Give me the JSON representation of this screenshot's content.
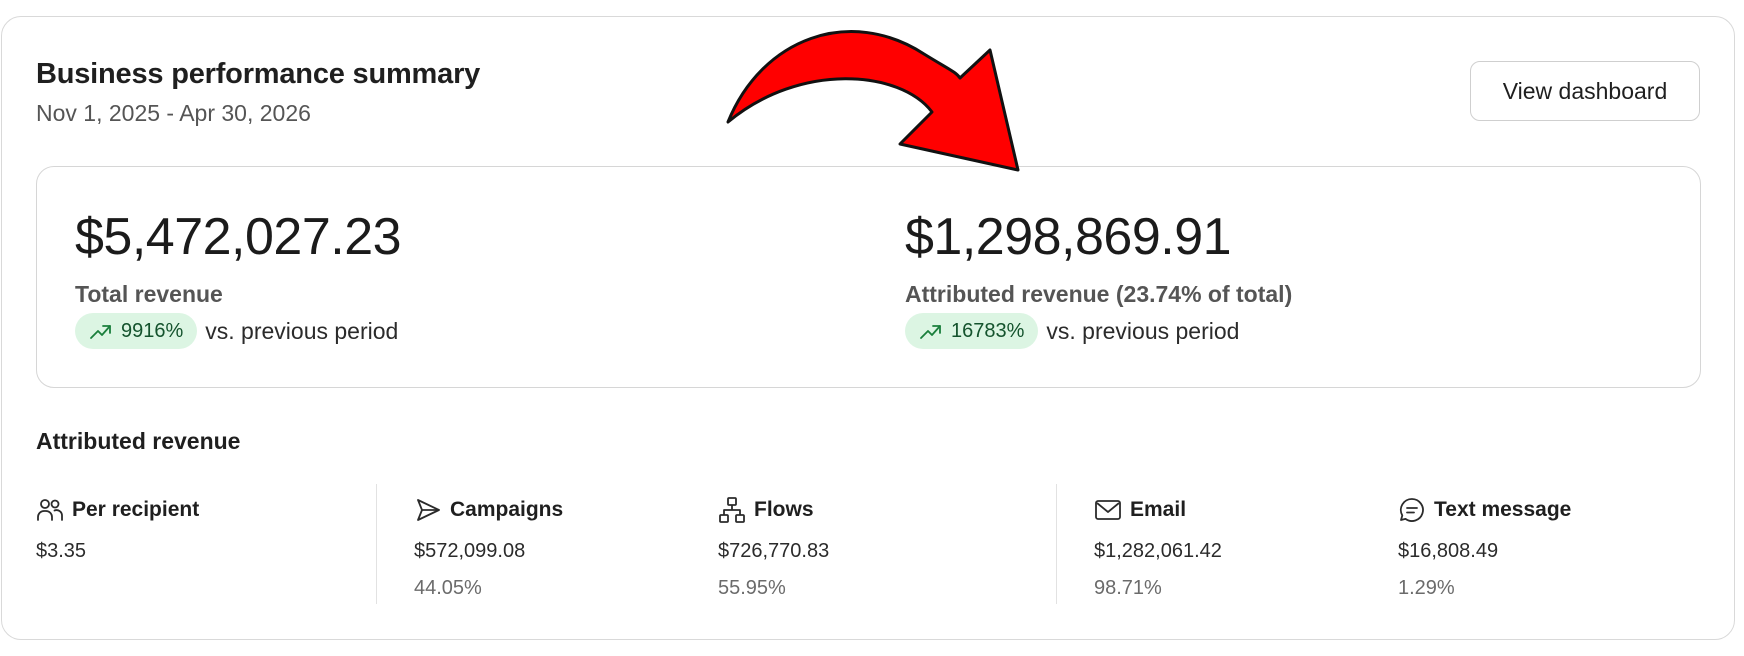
{
  "header": {
    "title": "Business performance summary",
    "date_range": "Nov 1, 2025 - Apr 30, 2026",
    "view_dashboard_label": "View dashboard"
  },
  "summary": {
    "total": {
      "amount": "$5,472,027.23",
      "label": "Total revenue",
      "change": "9916%",
      "comparison": "vs. previous period"
    },
    "attributed": {
      "amount": "$1,298,869.91",
      "label": "Attributed revenue (23.74% of total)",
      "change": "16783%",
      "comparison": "vs. previous period"
    }
  },
  "breakdown": {
    "title": "Attributed revenue",
    "items": [
      {
        "label": "Per recipient",
        "value": "$3.35",
        "icon": "people-icon"
      },
      {
        "label": "Campaigns",
        "value": "$572,099.08",
        "percent": "44.05%",
        "icon": "send-icon"
      },
      {
        "label": "Flows",
        "value": "$726,770.83",
        "percent": "55.95%",
        "icon": "flow-icon"
      },
      {
        "label": "Email",
        "value": "$1,282,061.42",
        "percent": "98.71%",
        "icon": "mail-icon"
      },
      {
        "label": "Text message",
        "value": "$16,808.49",
        "percent": "1.29%",
        "icon": "chat-icon"
      }
    ]
  },
  "colors": {
    "accent_green_bg": "#dcf5e3",
    "accent_green": "#1a7f3c",
    "annotation_arrow": "#ff0000"
  }
}
